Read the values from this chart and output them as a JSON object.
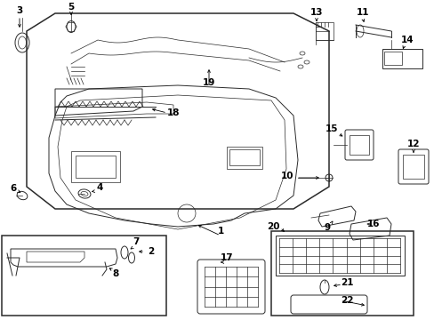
{
  "bg_color": "#ffffff",
  "line_color": "#2a2a2a",
  "fig_width": 4.89,
  "fig_height": 3.6,
  "dpi": 100,
  "label_fs": 7.5,
  "lw_main": 1.1,
  "lw_med": 0.7,
  "lw_thin": 0.5
}
